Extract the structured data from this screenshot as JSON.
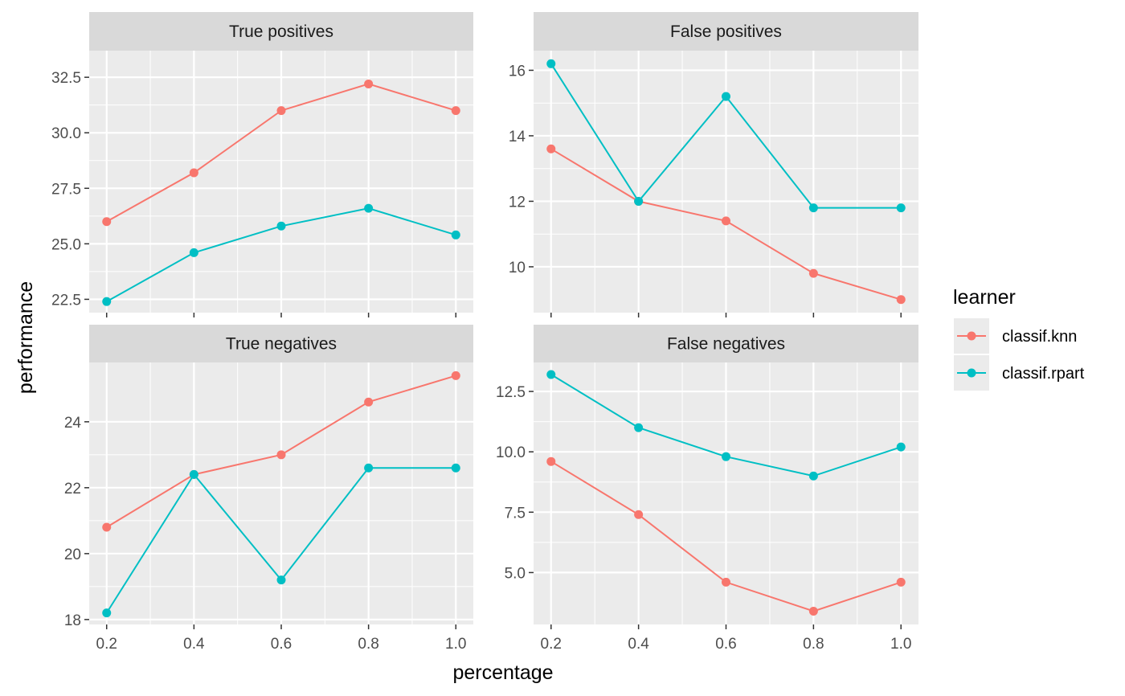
{
  "chart_data": {
    "type": "line",
    "xlabel": "percentage",
    "ylabel": "performance",
    "legend": {
      "title": "learner",
      "position": "right",
      "entries": [
        "classif.knn",
        "classif.rpart"
      ]
    },
    "colors": {
      "classif.knn": "#F8766D",
      "classif.rpart": "#00BFC4"
    },
    "grid": true,
    "x": [
      0.2,
      0.4,
      0.6,
      0.8,
      1.0
    ],
    "x_tick_labels": [
      "0.2",
      "0.4",
      "0.6",
      "0.8",
      "1.0"
    ],
    "xlim": [
      0.16,
      1.04
    ],
    "panels": [
      {
        "title": "True positives",
        "ylim": [
          21.9,
          33.7
        ],
        "y_ticks": [
          22.5,
          25.0,
          27.5,
          30.0,
          32.5
        ],
        "y_tick_labels": [
          "22.5",
          "25.0",
          "27.5",
          "30.0",
          "32.5"
        ],
        "series": [
          {
            "name": "classif.knn",
            "values": [
              26.0,
              28.2,
              31.0,
              32.2,
              31.0
            ]
          },
          {
            "name": "classif.rpart",
            "values": [
              22.4,
              24.6,
              25.8,
              26.6,
              25.4
            ]
          }
        ]
      },
      {
        "title": "False positives",
        "ylim": [
          8.6,
          16.6
        ],
        "y_ticks": [
          10,
          12,
          14,
          16
        ],
        "y_tick_labels": [
          "10",
          "12",
          "14",
          "16"
        ],
        "series": [
          {
            "name": "classif.knn",
            "values": [
              13.6,
              12.0,
              11.4,
              9.8,
              9.0
            ]
          },
          {
            "name": "classif.rpart",
            "values": [
              16.2,
              12.0,
              15.2,
              11.8,
              11.8
            ]
          }
        ]
      },
      {
        "title": "True negatives",
        "ylim": [
          17.85,
          25.8
        ],
        "y_ticks": [
          18,
          20,
          22,
          24
        ],
        "y_tick_labels": [
          "18",
          "20",
          "22",
          "24"
        ],
        "series": [
          {
            "name": "classif.knn",
            "values": [
              20.8,
              22.4,
              23.0,
              24.6,
              25.4
            ]
          },
          {
            "name": "classif.rpart",
            "values": [
              18.2,
              22.4,
              19.2,
              22.6,
              22.6
            ]
          }
        ]
      },
      {
        "title": "False negatives",
        "ylim": [
          2.85,
          13.7
        ],
        "y_ticks": [
          5.0,
          7.5,
          10.0,
          12.5
        ],
        "y_tick_labels": [
          "5.0",
          "7.5",
          "10.0",
          "12.5"
        ],
        "series": [
          {
            "name": "classif.knn",
            "values": [
              9.6,
              7.4,
              4.6,
              3.4,
              4.6
            ]
          },
          {
            "name": "classif.rpart",
            "values": [
              13.2,
              11.0,
              9.8,
              9.0,
              10.2
            ]
          }
        ]
      }
    ]
  }
}
